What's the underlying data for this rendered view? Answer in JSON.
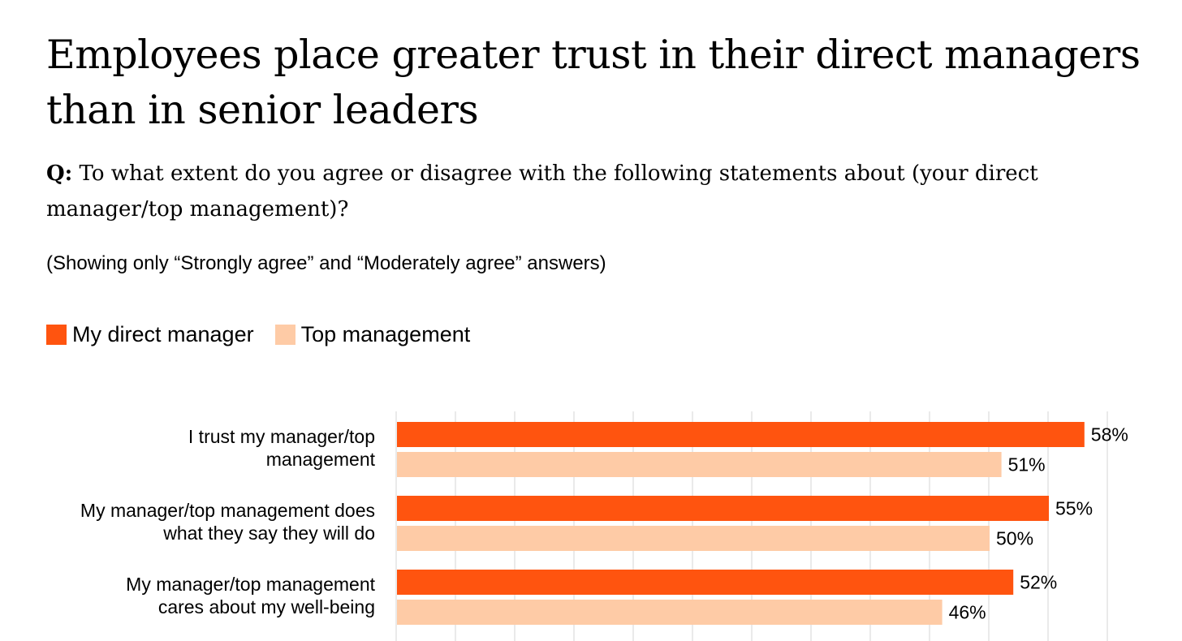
{
  "chart_data": {
    "type": "bar",
    "orientation": "horizontal",
    "title": "Employees place greater trust in their direct managers than in senior leaders",
    "question_prefix": "Q:",
    "question": "To what extent do you agree or disagree with the following statements about (your direct manager/top management)?",
    "note": "(Showing only “Strongly agree” and “Moderately agree” answers)",
    "categories": [
      [
        "I trust my manager/top",
        "management"
      ],
      [
        "My manager/top management does",
        "what they say they will do"
      ],
      [
        "My manager/top management",
        "cares about my well-being"
      ]
    ],
    "series": [
      {
        "name": "My direct manager",
        "values": [
          58,
          55,
          52
        ],
        "labels": [
          "58%",
          "55%",
          "52%"
        ],
        "color": "#FF540F"
      },
      {
        "name": "Top management",
        "values": [
          51,
          50,
          46
        ],
        "labels": [
          "51%",
          "50%",
          "46%"
        ],
        "color": "#FECBA6"
      }
    ],
    "xlim": [
      0,
      60
    ],
    "grid": true,
    "gridline_color": "#e3e3e3",
    "legend_position": "top-left"
  }
}
